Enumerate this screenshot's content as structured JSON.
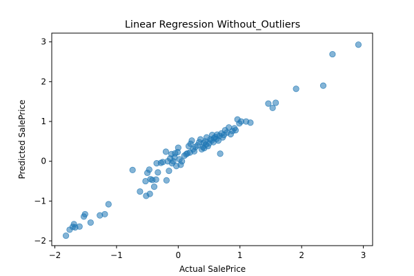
{
  "chart_data": {
    "type": "scatter",
    "title": "Linear Regression Without_Outliers",
    "xlabel": "Actual SalePrice",
    "ylabel": "Predicted SalePrice",
    "xlim": [
      -2.05,
      3.15
    ],
    "ylim": [
      -2.12,
      3.22
    ],
    "xticks": [
      -2,
      -1,
      0,
      1,
      2,
      3
    ],
    "yticks": [
      -2,
      -1,
      0,
      1,
      2,
      3
    ],
    "xtick_labels": [
      "−2",
      "−1",
      "0",
      "1",
      "2",
      "3"
    ],
    "ytick_labels": [
      "−2",
      "−1",
      "0",
      "1",
      "2",
      "3"
    ],
    "grid": false,
    "marker_color": "#1f77b4",
    "marker_alpha": 0.55,
    "points": [
      [
        -1.82,
        -1.87
      ],
      [
        -1.76,
        -1.72
      ],
      [
        -1.71,
        -1.65
      ],
      [
        -1.69,
        -1.58
      ],
      [
        -1.67,
        -1.66
      ],
      [
        -1.6,
        -1.64
      ],
      [
        -1.53,
        -1.39
      ],
      [
        -1.51,
        -1.33
      ],
      [
        -1.42,
        -1.54
      ],
      [
        -1.27,
        -1.36
      ],
      [
        -1.19,
        -1.33
      ],
      [
        -1.13,
        -1.08
      ],
      [
        -0.74,
        -0.22
      ],
      [
        -0.62,
        -0.76
      ],
      [
        -0.53,
        -0.5
      ],
      [
        -0.52,
        -0.87
      ],
      [
        -0.5,
        -0.29
      ],
      [
        -0.47,
        -0.21
      ],
      [
        -0.46,
        -0.82
      ],
      [
        -0.45,
        -0.45
      ],
      [
        -0.42,
        -0.47
      ],
      [
        -0.39,
        -0.64
      ],
      [
        -0.36,
        -0.46
      ],
      [
        -0.35,
        -0.05
      ],
      [
        -0.33,
        -0.28
      ],
      [
        -0.28,
        -0.04
      ],
      [
        -0.25,
        -0.02
      ],
      [
        -0.2,
        0.24
      ],
      [
        -0.19,
        -0.48
      ],
      [
        -0.17,
        0.0
      ],
      [
        -0.15,
        -0.24
      ],
      [
        -0.13,
        0.07
      ],
      [
        -0.11,
        0.18
      ],
      [
        -0.1,
        -0.05
      ],
      [
        -0.08,
        0.0
      ],
      [
        -0.06,
        0.1
      ],
      [
        -0.05,
        0.2
      ],
      [
        -0.03,
        -0.12
      ],
      [
        -0.01,
        0.23
      ],
      [
        0.0,
        0.34
      ],
      [
        0.02,
        0.05
      ],
      [
        0.04,
        -0.09
      ],
      [
        0.06,
        0.0
      ],
      [
        0.1,
        0.14
      ],
      [
        0.13,
        0.18
      ],
      [
        0.15,
        0.2
      ],
      [
        0.17,
        0.38
      ],
      [
        0.19,
        0.22
      ],
      [
        0.2,
        0.44
      ],
      [
        0.22,
        0.52
      ],
      [
        0.24,
        0.3
      ],
      [
        0.26,
        0.25
      ],
      [
        0.28,
        0.36
      ],
      [
        0.31,
        0.4
      ],
      [
        0.34,
        0.48
      ],
      [
        0.36,
        0.55
      ],
      [
        0.38,
        0.3
      ],
      [
        0.4,
        0.36
      ],
      [
        0.41,
        0.46
      ],
      [
        0.42,
        0.33
      ],
      [
        0.44,
        0.5
      ],
      [
        0.45,
        0.42
      ],
      [
        0.46,
        0.6
      ],
      [
        0.48,
        0.38
      ],
      [
        0.5,
        0.45
      ],
      [
        0.52,
        0.55
      ],
      [
        0.54,
        0.52
      ],
      [
        0.55,
        0.66
      ],
      [
        0.57,
        0.48
      ],
      [
        0.58,
        0.58
      ],
      [
        0.6,
        0.61
      ],
      [
        0.62,
        0.56
      ],
      [
        0.63,
        0.67
      ],
      [
        0.65,
        0.52
      ],
      [
        0.67,
        0.64
      ],
      [
        0.68,
        0.19
      ],
      [
        0.7,
        0.7
      ],
      [
        0.72,
        0.6
      ],
      [
        0.74,
        0.66
      ],
      [
        0.76,
        0.78
      ],
      [
        0.79,
        0.72
      ],
      [
        0.82,
        0.85
      ],
      [
        0.85,
        0.68
      ],
      [
        0.88,
        0.76
      ],
      [
        0.91,
        0.83
      ],
      [
        0.93,
        0.78
      ],
      [
        0.96,
        1.05
      ],
      [
        0.99,
        0.95
      ],
      [
        1.02,
        1.0
      ],
      [
        1.1,
        1.0
      ],
      [
        1.17,
        0.97
      ],
      [
        1.46,
        1.45
      ],
      [
        1.53,
        1.34
      ],
      [
        1.58,
        1.47
      ],
      [
        1.91,
        1.82
      ],
      [
        2.35,
        1.9
      ],
      [
        2.5,
        2.69
      ],
      [
        2.92,
        2.93
      ]
    ]
  }
}
